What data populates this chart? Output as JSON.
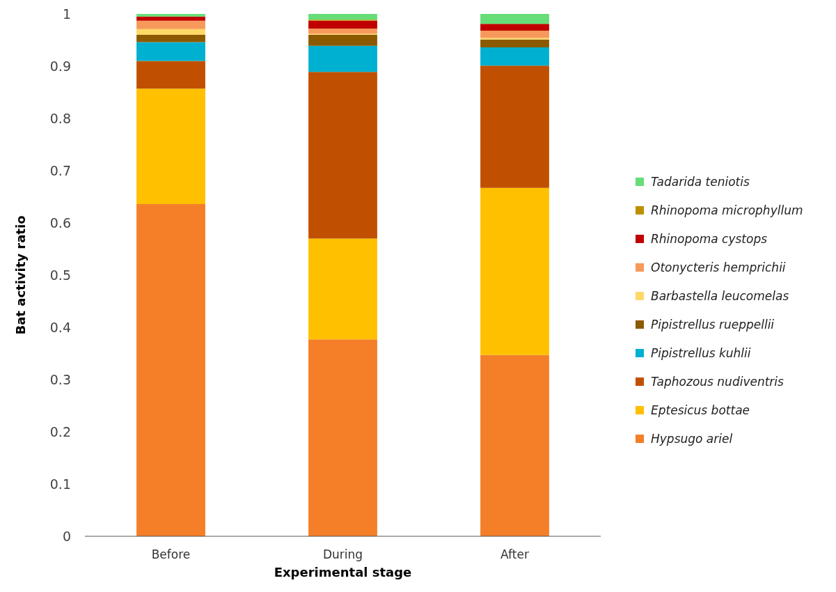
{
  "chart_data": {
    "type": "bar",
    "stacked": true,
    "xlabel": "Experimental stage",
    "ylabel": "Bat activity ratio",
    "categories": [
      "Before",
      "During",
      "After"
    ],
    "ylim": [
      0,
      1
    ],
    "yticks": [
      0,
      0.1,
      0.2,
      0.3,
      0.4,
      0.5,
      0.6,
      0.7,
      0.8,
      0.9,
      1
    ],
    "grid": false,
    "legend": "right",
    "series": [
      {
        "name": "Hypsugo ariel",
        "color": "#f47f28",
        "values": [
          0.636,
          0.377,
          0.347
        ]
      },
      {
        "name": "Eptesicus bottae",
        "color": "#ffc000",
        "values": [
          0.221,
          0.193,
          0.32
        ]
      },
      {
        "name": "Taphozous nudiventris",
        "color": "#c05000",
        "values": [
          0.053,
          0.319,
          0.234
        ]
      },
      {
        "name": "Pipistrellus kuhlii",
        "color": "#00b0d0",
        "values": [
          0.036,
          0.05,
          0.035
        ]
      },
      {
        "name": "Pipistrellus rueppellii",
        "color": "#8b5a00",
        "values": [
          0.014,
          0.021,
          0.015
        ]
      },
      {
        "name": "Barbastella leucomelas",
        "color": "#ffd966",
        "values": [
          0.011,
          0.002,
          0.003
        ]
      },
      {
        "name": "Otonycteris hemprichii",
        "color": "#f7995a",
        "values": [
          0.016,
          0.01,
          0.014
        ]
      },
      {
        "name": "Rhinopoma cystops",
        "color": "#c00000",
        "values": [
          0.008,
          0.015,
          0.013
        ]
      },
      {
        "name": "Rhinopoma microphyllum",
        "color": "#bf8f00",
        "values": [
          0,
          0.002,
          0
        ]
      },
      {
        "name": "Tadarida teniotis",
        "color": "#66dd77",
        "values": [
          0.005,
          0.011,
          0.019
        ]
      }
    ]
  }
}
